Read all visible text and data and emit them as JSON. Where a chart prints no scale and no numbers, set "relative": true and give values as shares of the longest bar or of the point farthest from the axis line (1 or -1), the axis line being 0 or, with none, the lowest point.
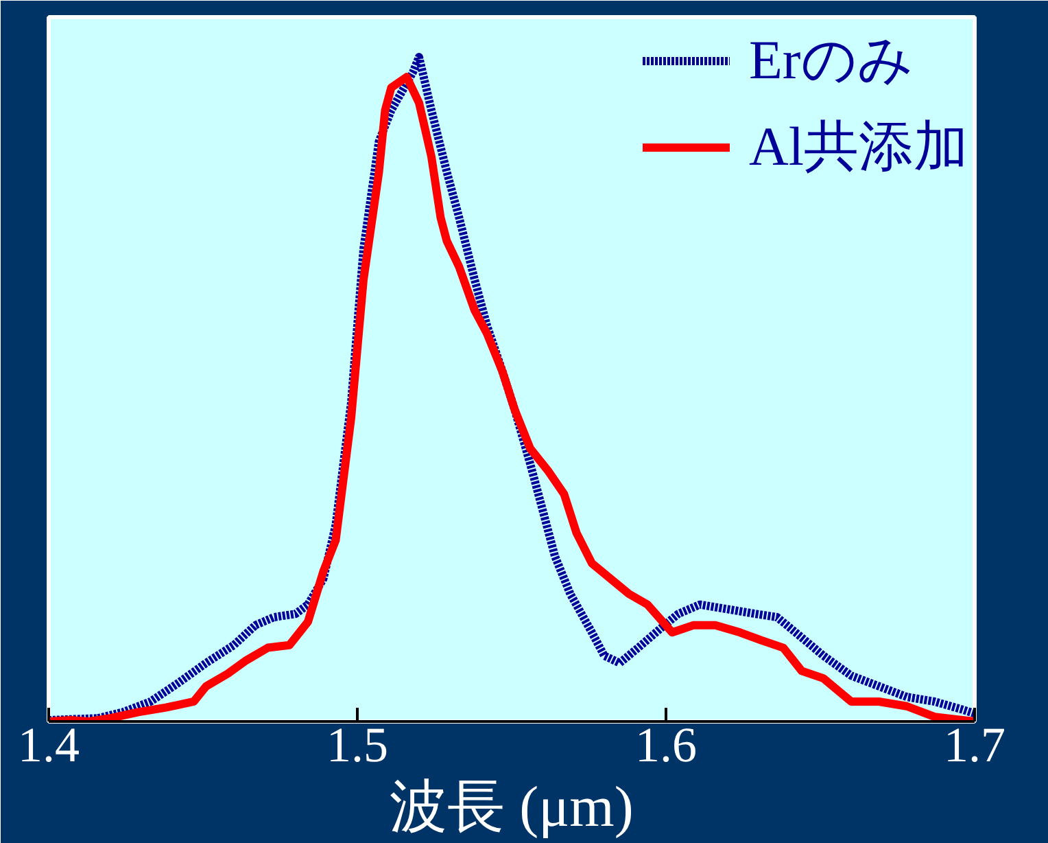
{
  "chart_data": {
    "type": "line",
    "relative": true,
    "xlabel": "波長 (μm)",
    "xlim": [
      1.4,
      1.7
    ],
    "xticks": [
      1.4,
      1.5,
      1.6,
      1.7
    ],
    "grid": false,
    "legend": "top right",
    "series": [
      {
        "name": "Erのみ",
        "color": "#000099",
        "line_style": "dotted",
        "x": [
          1.4,
          1.416,
          1.424,
          1.433,
          1.442,
          1.451,
          1.46,
          1.467,
          1.473,
          1.48,
          1.484,
          1.489,
          1.493,
          1.498,
          1.502,
          1.507,
          1.511,
          1.518,
          1.52,
          1.524,
          1.529,
          1.533,
          1.538,
          1.542,
          1.547,
          1.551,
          1.556,
          1.56,
          1.564,
          1.569,
          1.576,
          1.58,
          1.585,
          1.591,
          1.598,
          1.604,
          1.611,
          1.62,
          1.629,
          1.636,
          1.642,
          1.651,
          1.66,
          1.669,
          1.678,
          1.687,
          1.696,
          1.7
        ],
        "values": [
          0.002,
          0.005,
          0.014,
          0.03,
          0.058,
          0.088,
          0.115,
          0.145,
          0.157,
          0.162,
          0.176,
          0.215,
          0.296,
          0.48,
          0.711,
          0.873,
          0.92,
          0.977,
          1,
          0.92,
          0.827,
          0.758,
          0.665,
          0.596,
          0.527,
          0.469,
          0.388,
          0.319,
          0.249,
          0.192,
          0.134,
          0.099,
          0.088,
          0.111,
          0.139,
          0.162,
          0.176,
          0.169,
          0.162,
          0.157,
          0.134,
          0.099,
          0.069,
          0.053,
          0.037,
          0.03,
          0.018,
          0.012
        ]
      },
      {
        "name": "Al共添加",
        "color": "#ff0000",
        "line_style": "solid",
        "x": [
          1.4,
          1.407,
          1.413,
          1.42,
          1.429,
          1.438,
          1.447,
          1.451,
          1.458,
          1.464,
          1.471,
          1.478,
          1.484,
          1.489,
          1.493,
          1.498,
          1.502,
          1.507,
          1.509,
          1.511,
          1.516,
          1.52,
          1.524,
          1.527,
          1.529,
          1.533,
          1.538,
          1.542,
          1.547,
          1.551,
          1.556,
          1.562,
          1.567,
          1.571,
          1.576,
          1.582,
          1.588,
          1.594,
          1.602,
          1.609,
          1.616,
          1.624,
          1.631,
          1.638,
          1.644,
          1.651,
          1.66,
          1.669,
          1.678,
          1.687,
          1.696,
          1.7
        ],
        "values": [
          0,
          0.002,
          0,
          0.005,
          0.014,
          0.021,
          0.03,
          0.053,
          0.072,
          0.092,
          0.111,
          0.115,
          0.15,
          0.226,
          0.273,
          0.457,
          0.665,
          0.827,
          0.92,
          0.954,
          0.97,
          0.931,
          0.85,
          0.758,
          0.723,
          0.684,
          0.619,
          0.584,
          0.527,
          0.469,
          0.411,
          0.376,
          0.342,
          0.284,
          0.238,
          0.215,
          0.192,
          0.176,
          0.134,
          0.145,
          0.145,
          0.134,
          0.122,
          0.111,
          0.076,
          0.065,
          0.03,
          0.03,
          0.023,
          0.007,
          0.002,
          0
        ]
      }
    ]
  }
}
